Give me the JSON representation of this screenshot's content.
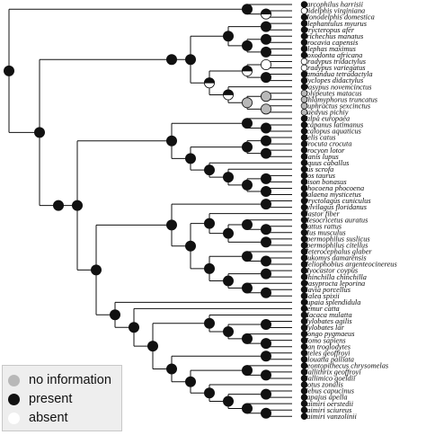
{
  "taxa": [
    {
      "name": "Sarcophilus harrisii",
      "state": "present"
    },
    {
      "name": "Didelphis virginiana",
      "state": "absent"
    },
    {
      "name": "Monodelphis domestica",
      "state": "present"
    },
    {
      "name": "Elephantulus myurus",
      "state": "present"
    },
    {
      "name": "Orycteropus afer",
      "state": "present"
    },
    {
      "name": "Trichechus manatus",
      "state": "present"
    },
    {
      "name": "Procavia capensis",
      "state": "present"
    },
    {
      "name": "Elephas maximus",
      "state": "present"
    },
    {
      "name": "Loxodonta africana",
      "state": "present"
    },
    {
      "name": "Bradypus tridactylus",
      "state": "absent"
    },
    {
      "name": "Bradypus variegatus",
      "state": "absent"
    },
    {
      "name": "Tamandua tetradactyla",
      "state": "present"
    },
    {
      "name": "Cyclopes didactylus",
      "state": "present"
    },
    {
      "name": "Dasypus novemcinctus",
      "state": "present"
    },
    {
      "name": "Tolypeutes matacus",
      "state": "no information"
    },
    {
      "name": "Chlamyphorus truncatus",
      "state": "no information"
    },
    {
      "name": "Euphractus sexcinctus",
      "state": "no information"
    },
    {
      "name": "Zaedyus pichiy",
      "state": "no information"
    },
    {
      "name": "Talpa europaea",
      "state": "present"
    },
    {
      "name": "Scapanus latimanus",
      "state": "present"
    },
    {
      "name": "Scalopus aquaticus",
      "state": "present"
    },
    {
      "name": "Felis catus",
      "state": "present"
    },
    {
      "name": "Crocuta crocuta",
      "state": "present"
    },
    {
      "name": "Procyon lotor",
      "state": "present"
    },
    {
      "name": "Canis lupus",
      "state": "present"
    },
    {
      "name": "Equus caballus",
      "state": "present"
    },
    {
      "name": "Sus scrofa",
      "state": "present"
    },
    {
      "name": "Bos taurus",
      "state": "present"
    },
    {
      "name": "Bison bonasus",
      "state": "present"
    },
    {
      "name": "Phocoena phocoena",
      "state": "present"
    },
    {
      "name": "Balaena mysticetus",
      "state": "present"
    },
    {
      "name": "Oryctolagus cuniculus",
      "state": "present"
    },
    {
      "name": "Sylvilagus floridanus",
      "state": "present"
    },
    {
      "name": "Castor fiber",
      "state": "present"
    },
    {
      "name": "Mesocricetus auratus",
      "state": "present"
    },
    {
      "name": "Rattus rattus",
      "state": "present"
    },
    {
      "name": "Mus musculus",
      "state": "present"
    },
    {
      "name": "Spermophilus suslicus",
      "state": "present"
    },
    {
      "name": "Spermophilus citellus",
      "state": "present"
    },
    {
      "name": "Heterocephalus glaber",
      "state": "present"
    },
    {
      "name": "Fukomys damarensis",
      "state": "present"
    },
    {
      "name": "Heliophobius argenteocinereus",
      "state": "present"
    },
    {
      "name": "Myocastor coypus",
      "state": "present"
    },
    {
      "name": "Chinchilla chinchilla",
      "state": "present"
    },
    {
      "name": "Dasyprocta leporina",
      "state": "present"
    },
    {
      "name": "Cavia porcellus",
      "state": "present"
    },
    {
      "name": "Galea spixii",
      "state": "present"
    },
    {
      "name": "Tupaia splendidula",
      "state": "present"
    },
    {
      "name": "Lemur catta",
      "state": "present"
    },
    {
      "name": "Macaca mulatta",
      "state": "present"
    },
    {
      "name": "Hylobates agilis",
      "state": "present"
    },
    {
      "name": "Hylobates lar",
      "state": "present"
    },
    {
      "name": "Pongo pygmaeus",
      "state": "present"
    },
    {
      "name": "Homo sapiens",
      "state": "present"
    },
    {
      "name": "Pan troglodytes",
      "state": "present"
    },
    {
      "name": "Ateles geoffroyi",
      "state": "present"
    },
    {
      "name": "Alouatta palliata",
      "state": "present"
    },
    {
      "name": "Leontopithecus chrysomelas",
      "state": "present"
    },
    {
      "name": "Callithrix geoffroyi",
      "state": "present"
    },
    {
      "name": "Callimico goeldii",
      "state": "present"
    },
    {
      "name": "Aotus zonalis",
      "state": "present"
    },
    {
      "name": "Cebus capucinus",
      "state": "present"
    },
    {
      "name": "Sapajus apella",
      "state": "present"
    },
    {
      "name": "Saimiri oerstedii",
      "state": "present"
    },
    {
      "name": "Saimiri sciureus",
      "state": "present"
    },
    {
      "name": "Saimiri vanzolinii",
      "state": "present"
    }
  ],
  "legend": [
    {
      "label": "no information",
      "state": "no information"
    },
    {
      "label": "present",
      "state": "present"
    },
    {
      "label": "absent",
      "state": "absent"
    }
  ],
  "state_colors": {
    "present": "#111111",
    "absent": "#ffffff",
    "no information": "#b8b8b8"
  },
  "tree": {
    "c": [
      {
        "c": [
          0,
          {
            "c": [
              1,
              2
            ],
            "s": "h"
          }
        ],
        "s": "p"
      },
      {
        "c": [
          {
            "c": [
              {
                "c": [
                  {
                    "c": [
                      {
                        "c": [
                          3,
                          4
                        ],
                        "s": "p"
                      },
                      {
                        "c": [
                          {
                            "c": [
                              5,
                              6
                            ],
                            "s": "p"
                          },
                          {
                            "c": [
                              7,
                              8
                            ],
                            "s": "p"
                          }
                        ],
                        "s": "p"
                      }
                    ],
                    "s": "p"
                  },
                  {
                    "c": [
                      {
                        "c": [
                          {
                            "c": [
                              9,
                              10
                            ],
                            "s": "a"
                          },
                          {
                            "c": [
                              11,
                              12
                            ],
                            "s": "p"
                          }
                        ],
                        "s": "h"
                      },
                      {
                        "c": [
                          13,
                          {
                            "c": [
                              {
                                "c": [
                                  14,
                                  15
                                ],
                                "s": "n"
                              },
                              {
                                "c": [
                                  16,
                                  17
                                ],
                                "s": "n"
                              }
                            ],
                            "s": "n"
                          }
                        ],
                        "s": "h"
                      }
                    ],
                    "s": "h"
                  }
                ],
                "s": "p"
              }
            ],
            "s": "p"
          },
          {
            "c": [
              {
                "c": [
                  {
                    "c": [
                      {
                        "c": [
                          18,
                          {
                            "c": [
                              19,
                              20
                            ],
                            "s": "p"
                          }
                        ],
                        "s": "p"
                      },
                      {
                        "c": [
                          {
                            "c": [
                              {
                                "c": [
                                  21,
                                  22
                                ],
                                "s": "p"
                              },
                              {
                                "c": [
                                  23,
                                  24
                                ],
                                "s": "p"
                              }
                            ],
                            "s": "p"
                          },
                          {
                            "c": [
                              25,
                              {
                                "c": [
                                  26,
                                  {
                                    "c": [
                                      {
                                        "c": [
                                          27,
                                          28
                                        ],
                                        "s": "p"
                                      },
                                      {
                                        "c": [
                                          29,
                                          30
                                        ],
                                        "s": "p"
                                      }
                                    ],
                                    "s": "p"
                                  }
                                ],
                                "s": "p"
                              }
                            ],
                            "s": "p"
                          }
                        ],
                        "s": "p"
                      }
                    ],
                    "s": "p"
                  },
                  {
                    "c": [
                      {
                        "c": [
                          {
                            "c": [
                              31,
                              32
                            ],
                            "s": "p"
                          },
                          {
                            "c": [
                              {
                                "c": [
                                  33,
                                  {
                                    "c": [
                                      {
                                        "c": [
                                          34,
                                          {
                                            "c": [
                                              35,
                                              36
                                            ],
                                            "s": "p"
                                          }
                                        ],
                                        "s": "p"
                                      },
                                      {
                                        "c": [
                                          37,
                                          38
                                        ],
                                        "s": "p"
                                      }
                                    ],
                                    "s": "p"
                                  }
                                ],
                                "s": "p"
                              },
                              {
                                "c": [
                                  {
                                    "c": [
                                      39,
                                      {
                                        "c": [
                                          40,
                                          41
                                        ],
                                        "s": "p"
                                      }
                                    ],
                                    "s": "p"
                                  },
                                  {
                                    "c": [
                                      {
                                        "c": [
                                          42,
                                          43
                                        ],
                                        "s": "p"
                                      },
                                      {
                                        "c": [
                                          44,
                                          {
                                            "c": [
                                              45,
                                              46
                                            ],
                                            "s": "p"
                                          }
                                        ],
                                        "s": "p"
                                      }
                                    ],
                                    "s": "p"
                                  }
                                ],
                                "s": "p"
                              }
                            ],
                            "s": "p"
                          }
                        ],
                        "s": "p"
                      },
                      {
                        "c": [
                          47,
                          {
                            "c": [
                              48,
                              {
                                "c": [
                                  {
                                    "c": [
                                      49,
                                      {
                                        "c": [
                                          {
                                            "c": [
                                              50,
                                              51
                                            ],
                                            "s": "p"
                                          },
                                          {
                                            "c": [
                                              52,
                                              {
                                                "c": [
                                                  53,
                                                  54
                                                ],
                                                "s": "p"
                                              }
                                            ],
                                            "s": "p"
                                          }
                                        ],
                                        "s": "p"
                                      }
                                    ],
                                    "s": "p"
                                  },
                                  {
                                    "c": [
                                      {
                                        "c": [
                                          55,
                                          56
                                        ],
                                        "s": "p"
                                      },
                                      {
                                        "c": [
                                          {
                                            "c": [
                                              57,
                                              {
                                                "c": [
                                                  58,
                                                  59
                                                ],
                                                "s": "p"
                                              }
                                            ],
                                            "s": "p"
                                          },
                                          {
                                            "c": [
                                              60,
                                              {
                                                "c": [
                                                  {
                                                    "c": [
                                                      61,
                                                      62
                                                    ],
                                                    "s": "p"
                                                  },
                                                  {
                                                    "c": [
                                                      63,
                                                      {
                                                        "c": [
                                                          64,
                                                          65
                                                        ],
                                                        "s": "p"
                                                      }
                                                    ],
                                                    "s": "p"
                                                  }
                                                ],
                                                "s": "p"
                                              }
                                            ],
                                            "s": "p"
                                          }
                                        ],
                                        "s": "p"
                                      }
                                    ],
                                    "s": "p"
                                  }
                                ],
                                "s": "p"
                              }
                            ],
                            "s": "p"
                          }
                        ],
                        "s": "p"
                      }
                    ],
                    "s": "p"
                  }
                ],
                "s": "p"
              }
            ],
            "s": "p"
          }
        ],
        "s": "p"
      }
    ],
    "s": "p"
  }
}
